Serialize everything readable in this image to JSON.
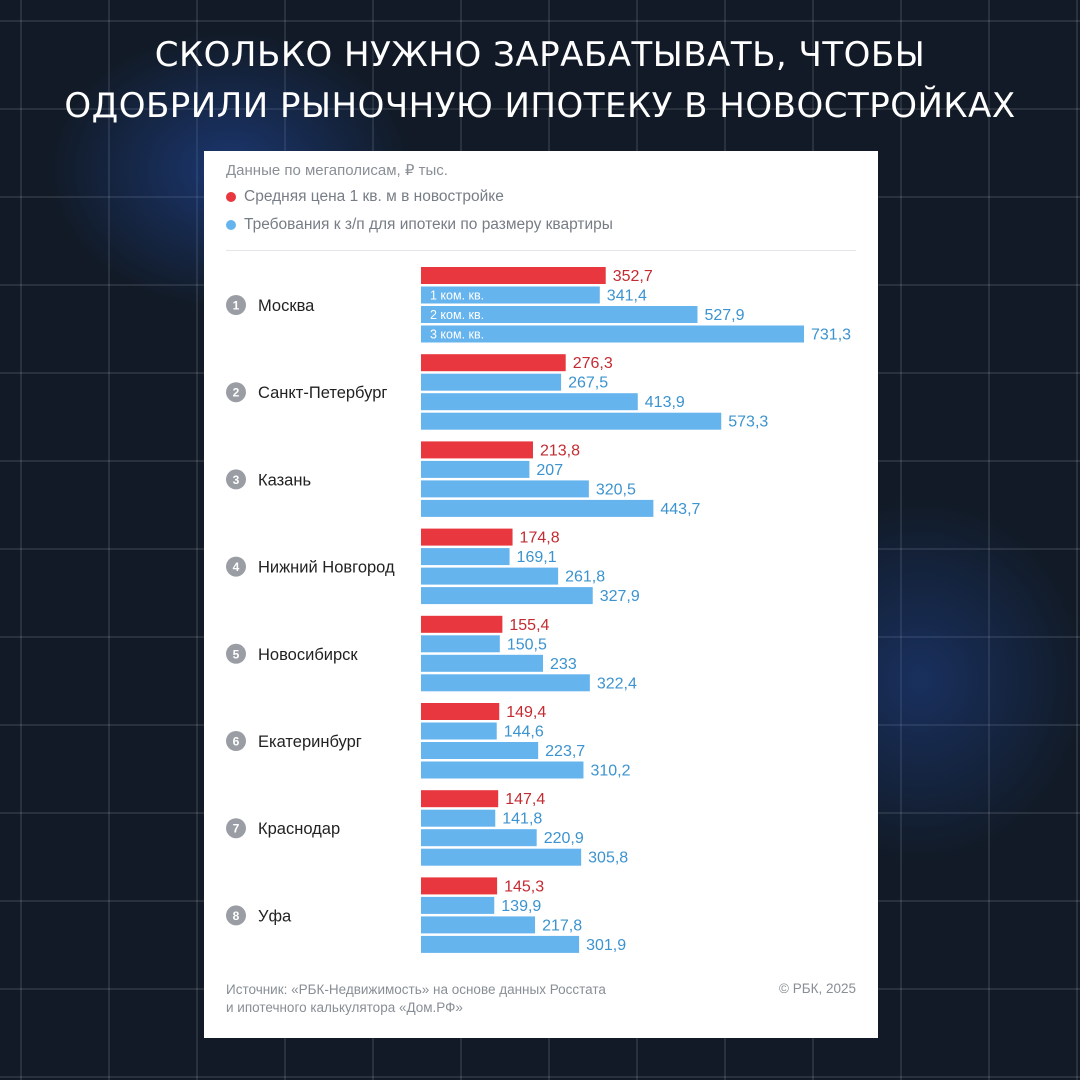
{
  "headline": {
    "line1": "СКОЛЬКО НУЖНО ЗАРАБАТЫВАТЬ, ЧТОБЫ",
    "line2": "ОДОБРИЛИ РЫНОЧНУЮ ИПОТЕКУ В НОВОСТРОЙКАХ"
  },
  "card": {
    "subtitle": "Данные по мегаполисам, ₽ тыс.",
    "source_line1": "Источник: «РБК-Недвижимость» на основе данных Росстата",
    "source_line2": "и ипотечного калькулятора «Дом.РФ»",
    "copyright": "© РБК, 2025"
  },
  "chart_data": {
    "type": "bar",
    "orientation": "horizontal",
    "title": "СКОЛЬКО НУЖНО ЗАРАБАТЫВАТЬ, ЧТОБЫ ОДОБРИЛИ РЫНОЧНУЮ ИПОТЕКУ В НОВОСТРОЙКАХ",
    "subtitle": "Данные по мегаполисам, ₽ тыс.",
    "legend": [
      {
        "label": "Средняя цена 1 кв. м в новостройке",
        "color": "#e8373e"
      },
      {
        "label": "Требования к з/п для ипотеки по размеру квартиры",
        "color": "#66b4ee"
      }
    ],
    "bar_labels": [
      "1 ком. кв.",
      "2 ком. кв.",
      "3 ком. кв."
    ],
    "colors": {
      "price": "#e8373e",
      "income": "#66b4ee",
      "price_text": "#c42b31",
      "income_text": "#3b93cf",
      "badge": "#9a9ea4"
    },
    "xlim": [
      0,
      731.3
    ],
    "cities": [
      {
        "rank": "1",
        "name": "Москва",
        "values": [
          352.7,
          341.4,
          527.9,
          731.3
        ],
        "labels": [
          "352,7",
          "341,4",
          "527,9",
          "731,3"
        ]
      },
      {
        "rank": "2",
        "name": "Санкт-Петербург",
        "values": [
          276.3,
          267.5,
          413.9,
          573.3
        ],
        "labels": [
          "276,3",
          "267,5",
          "413,9",
          "573,3"
        ]
      },
      {
        "rank": "3",
        "name": "Казань",
        "values": [
          213.8,
          207,
          320.5,
          443.7
        ],
        "labels": [
          "213,8",
          "207",
          "320,5",
          "443,7"
        ]
      },
      {
        "rank": "4",
        "name": "Нижний Новгород",
        "values": [
          174.8,
          169.1,
          261.8,
          327.9
        ],
        "labels": [
          "174,8",
          "169,1",
          "261,8",
          "327,9"
        ]
      },
      {
        "rank": "5",
        "name": "Новосибирск",
        "values": [
          155.4,
          150.5,
          233,
          322.4
        ],
        "labels": [
          "155,4",
          "150,5",
          "233",
          "322,4"
        ]
      },
      {
        "rank": "6",
        "name": "Екатеринбург",
        "values": [
          149.4,
          144.6,
          223.7,
          310.2
        ],
        "labels": [
          "149,4",
          "144,6",
          "223,7",
          "310,2"
        ]
      },
      {
        "rank": "7",
        "name": "Краснодар",
        "values": [
          147.4,
          141.8,
          220.9,
          305.8
        ],
        "labels": [
          "147,4",
          "141,8",
          "220,9",
          "305,8"
        ]
      },
      {
        "rank": "8",
        "name": "Уфа",
        "values": [
          145.3,
          139.9,
          217.8,
          301.9
        ],
        "labels": [
          "145,3",
          "139,9",
          "217,8",
          "301,9"
        ]
      }
    ]
  }
}
